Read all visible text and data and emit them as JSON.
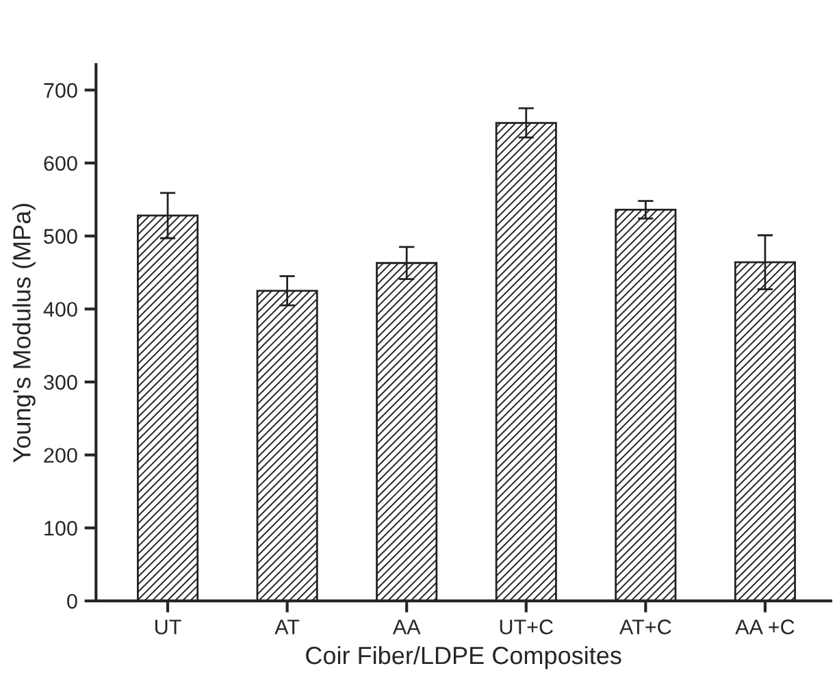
{
  "chart_data": {
    "type": "bar",
    "xlabel": "Coir Fiber/LDPE Composites",
    "ylabel": "Young's Modulus (MPa)",
    "categories": [
      "UT",
      "AT",
      "AA",
      "UT+C",
      "AT+C",
      "AA +C"
    ],
    "values": [
      528,
      425,
      463,
      655,
      536,
      464
    ],
    "errors": [
      31,
      20,
      22,
      20,
      12,
      37
    ],
    "color": "#222222",
    "ylim": [
      0,
      735
    ],
    "yticks": [
      0,
      100,
      200,
      300,
      400,
      500,
      600,
      700
    ],
    "grid": false
  }
}
